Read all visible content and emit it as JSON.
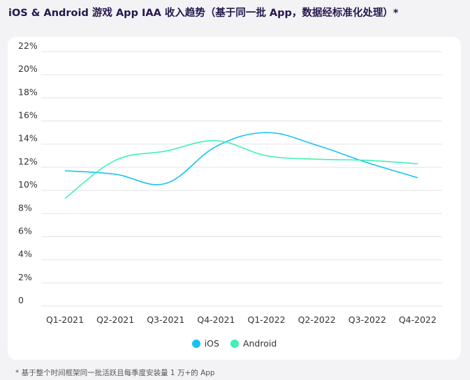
{
  "title": "iOS & Android 游戏 App IAA 收入趋势（基于同一批 App，数据经标准化处理）*",
  "footnote": "* 基于整个时间框架同一批活跃且每季度安装量 1 万+的 App",
  "chart_data": {
    "type": "line",
    "title": "iOS & Android 游戏 App IAA 收入趋势（基于同一批 App，数据经标准化处理）*",
    "categories": [
      "Q1-2021",
      "Q2-2021",
      "Q3-2021",
      "Q4-2021",
      "Q1-2022",
      "Q2-2022",
      "Q3-2022",
      "Q4-2022"
    ],
    "yticks": [
      "0",
      "2%",
      "4%",
      "6%",
      "8%",
      "10%",
      "12%",
      "14%",
      "16%",
      "18%",
      "20%",
      "22%"
    ],
    "ylim": [
      0,
      22
    ],
    "xlabel": "",
    "ylabel": "",
    "legend_position": "bottom",
    "series": [
      {
        "name": "iOS",
        "color": "#12c4f2",
        "values": [
          11.7,
          11.4,
          10.6,
          13.8,
          15.0,
          13.9,
          12.4,
          11.1
        ]
      },
      {
        "name": "Android",
        "color": "#3ef2b2",
        "values": [
          9.3,
          12.6,
          13.4,
          14.3,
          13.0,
          12.7,
          12.6,
          12.3
        ]
      }
    ]
  }
}
